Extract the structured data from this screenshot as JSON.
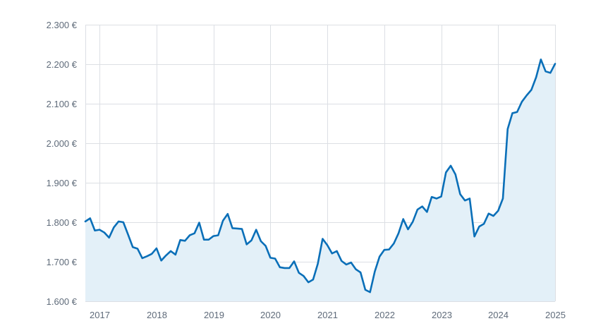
{
  "colors": {
    "line": "#0a6fb8",
    "area": "#e3f0f8",
    "grid": "#dcdfe4",
    "text": "#5f6b7a"
  },
  "chart_data": {
    "type": "area",
    "title": "",
    "xlabel": "",
    "ylabel": "",
    "grid": true,
    "legend": "none",
    "xlim": [
      2016.75,
      2025.0
    ],
    "ylim": [
      1600,
      2300
    ],
    "y_ticks": [
      {
        "value": 1600,
        "label": "1.600 €"
      },
      {
        "value": 1700,
        "label": "1.700 €"
      },
      {
        "value": 1800,
        "label": "1.800 €"
      },
      {
        "value": 1900,
        "label": "1.900 €"
      },
      {
        "value": 2000,
        "label": "2.000 €"
      },
      {
        "value": 2100,
        "label": "2.100 €"
      },
      {
        "value": 2200,
        "label": "2.200 €"
      },
      {
        "value": 2300,
        "label": "2.300 €"
      }
    ],
    "x_ticks": [
      {
        "value": 2017,
        "label": "2017"
      },
      {
        "value": 2018,
        "label": "2018"
      },
      {
        "value": 2019,
        "label": "2019"
      },
      {
        "value": 2020,
        "label": "2020"
      },
      {
        "value": 2021,
        "label": "2021"
      },
      {
        "value": 2022,
        "label": "2022"
      },
      {
        "value": 2023,
        "label": "2023"
      },
      {
        "value": 2024,
        "label": "2024"
      },
      {
        "value": 2025,
        "label": "2025"
      }
    ],
    "series": [
      {
        "points": [
          [
            2016.75,
            1802
          ],
          [
            2016.833,
            1810
          ],
          [
            2016.917,
            1779
          ],
          [
            2017.0,
            1781
          ],
          [
            2017.083,
            1774
          ],
          [
            2017.167,
            1761
          ],
          [
            2017.25,
            1787
          ],
          [
            2017.333,
            1802
          ],
          [
            2017.417,
            1800
          ],
          [
            2017.5,
            1769
          ],
          [
            2017.583,
            1737
          ],
          [
            2017.667,
            1733
          ],
          [
            2017.75,
            1709
          ],
          [
            2017.833,
            1714
          ],
          [
            2017.917,
            1720
          ],
          [
            2018.0,
            1734
          ],
          [
            2018.083,
            1703
          ],
          [
            2018.167,
            1716
          ],
          [
            2018.25,
            1727
          ],
          [
            2018.333,
            1718
          ],
          [
            2018.417,
            1755
          ],
          [
            2018.5,
            1753
          ],
          [
            2018.583,
            1767
          ],
          [
            2018.667,
            1772
          ],
          [
            2018.75,
            1799
          ],
          [
            2018.833,
            1756
          ],
          [
            2018.917,
            1756
          ],
          [
            2019.0,
            1765
          ],
          [
            2019.083,
            1767
          ],
          [
            2019.167,
            1804
          ],
          [
            2019.25,
            1821
          ],
          [
            2019.333,
            1785
          ],
          [
            2019.417,
            1784
          ],
          [
            2019.5,
            1783
          ],
          [
            2019.583,
            1744
          ],
          [
            2019.667,
            1754
          ],
          [
            2019.75,
            1781
          ],
          [
            2019.833,
            1752
          ],
          [
            2019.917,
            1740
          ],
          [
            2020.0,
            1710
          ],
          [
            2020.083,
            1708
          ],
          [
            2020.167,
            1686
          ],
          [
            2020.25,
            1684
          ],
          [
            2020.333,
            1684
          ],
          [
            2020.417,
            1701
          ],
          [
            2020.5,
            1672
          ],
          [
            2020.583,
            1664
          ],
          [
            2020.667,
            1648
          ],
          [
            2020.75,
            1655
          ],
          [
            2020.833,
            1695
          ],
          [
            2020.917,
            1758
          ],
          [
            2021.0,
            1742
          ],
          [
            2021.083,
            1721
          ],
          [
            2021.167,
            1727
          ],
          [
            2021.25,
            1702
          ],
          [
            2021.333,
            1693
          ],
          [
            2021.417,
            1698
          ],
          [
            2021.5,
            1681
          ],
          [
            2021.583,
            1673
          ],
          [
            2021.667,
            1629
          ],
          [
            2021.75,
            1623
          ],
          [
            2021.833,
            1675
          ],
          [
            2021.917,
            1713
          ],
          [
            2022.0,
            1730
          ],
          [
            2022.083,
            1731
          ],
          [
            2022.167,
            1746
          ],
          [
            2022.25,
            1772
          ],
          [
            2022.333,
            1808
          ],
          [
            2022.417,
            1782
          ],
          [
            2022.5,
            1801
          ],
          [
            2022.583,
            1832
          ],
          [
            2022.667,
            1840
          ],
          [
            2022.75,
            1826
          ],
          [
            2022.833,
            1864
          ],
          [
            2022.917,
            1860
          ],
          [
            2023.0,
            1865
          ],
          [
            2023.083,
            1926
          ],
          [
            2023.167,
            1943
          ],
          [
            2023.25,
            1921
          ],
          [
            2023.333,
            1871
          ],
          [
            2023.417,
            1855
          ],
          [
            2023.5,
            1860
          ],
          [
            2023.583,
            1764
          ],
          [
            2023.667,
            1789
          ],
          [
            2023.75,
            1796
          ],
          [
            2023.833,
            1822
          ],
          [
            2023.917,
            1816
          ],
          [
            2024.0,
            1829
          ],
          [
            2024.083,
            1860
          ],
          [
            2024.167,
            2036
          ],
          [
            2024.25,
            2076
          ],
          [
            2024.333,
            2079
          ],
          [
            2024.417,
            2105
          ],
          [
            2024.5,
            2121
          ],
          [
            2024.583,
            2135
          ],
          [
            2024.667,
            2167
          ],
          [
            2024.75,
            2212
          ],
          [
            2024.833,
            2182
          ],
          [
            2024.917,
            2178
          ],
          [
            2025.0,
            2201
          ]
        ]
      }
    ]
  }
}
